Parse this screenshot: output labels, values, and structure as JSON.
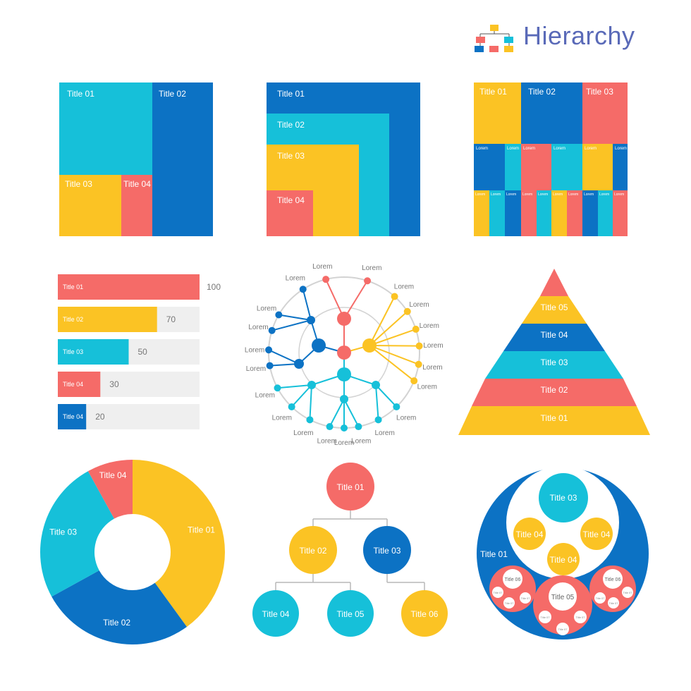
{
  "header": {
    "title": "Hierarchy",
    "logo_icon": "org-chart-icon"
  },
  "colors": {
    "cyan": "#16c0d9",
    "blue": "#0c72c4",
    "yellow": "#fbc324",
    "red": "#f56b68",
    "grey": "#efefef",
    "ring": "#d3d3d3"
  },
  "treemap_squarified": {
    "titles": [
      "Title 01",
      "Title 02",
      "Title 03",
      "Title 04"
    ]
  },
  "treemap_nested": {
    "titles": [
      "Title 01",
      "Title 02",
      "Title 03",
      "Title 04"
    ]
  },
  "treemap_columns": {
    "titles": [
      "Title 01",
      "Title 02",
      "Title 03"
    ],
    "leaf_label": "Lorem"
  },
  "bar_chart": {
    "chart_data": {
      "type": "bar",
      "orientation": "horizontal",
      "categories": [
        "Title 01",
        "Title 02",
        "Title 03",
        "Title 04",
        "Title 04"
      ],
      "values": [
        100,
        70,
        50,
        30,
        20
      ],
      "value_labels": [
        "100",
        "70",
        "50",
        "30",
        "20"
      ],
      "xlim": [
        0,
        100
      ]
    }
  },
  "radial_tree": {
    "leaf_label": "Lorem"
  },
  "pyramid": {
    "levels": [
      "Title 05",
      "Title 04",
      "Title 03",
      "Title 02",
      "Title 01"
    ]
  },
  "donut": {
    "chart_data": {
      "type": "pie",
      "hole": true,
      "labels": [
        "Title 01",
        "Title 02",
        "Title 03",
        "Title 04"
      ],
      "values": [
        40,
        27,
        25,
        8
      ]
    }
  },
  "org_tree": {
    "root": "Title 01",
    "level2": [
      "Title 02",
      "Title 03"
    ],
    "level3": [
      "Title 04",
      "Title 05",
      "Title 06"
    ]
  },
  "circle_pack": {
    "outer": "Title 01",
    "inner": "Title 02",
    "inner_top": "Title 03",
    "inner_children": [
      "Title 04",
      "Title 04",
      "Title 04"
    ],
    "bottom_center": "Title 05",
    "bottom_sides": [
      "Title 06",
      "Title 06"
    ],
    "leaves": "Title 07"
  }
}
